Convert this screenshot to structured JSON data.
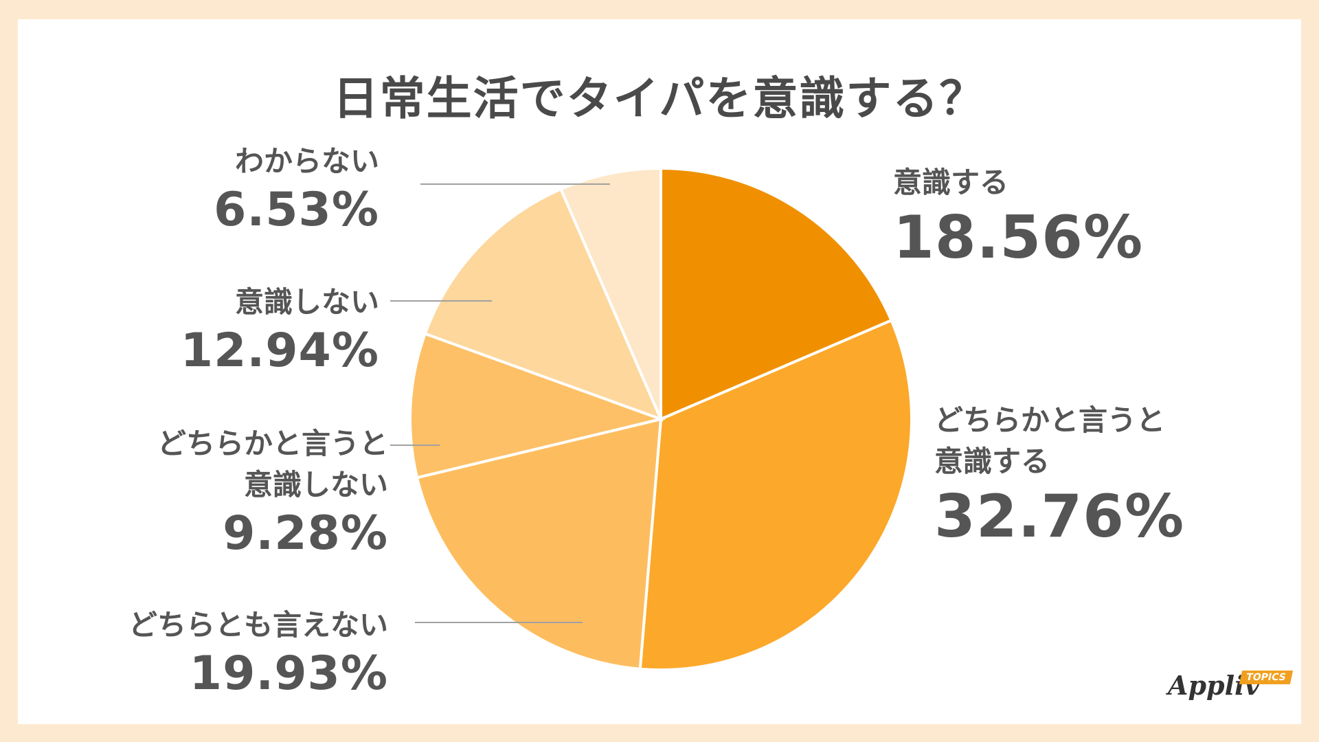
{
  "chart_data": {
    "type": "pie",
    "title": "日常生活でタイパを意識する？",
    "slices": [
      {
        "lines": [
          "意識する"
        ],
        "value": 18.56,
        "label": "18.56%",
        "color": "#f09000"
      },
      {
        "lines": [
          "どちらかと言うと",
          "意識する"
        ],
        "value": 32.76,
        "label": "32.76%",
        "color": "#fca82a"
      },
      {
        "lines": [
          "どちらとも言えない"
        ],
        "value": 19.93,
        "label": "19.93%",
        "color": "#fdbd5f"
      },
      {
        "lines": [
          "どちらかと言うと",
          "意識しない"
        ],
        "value": 9.28,
        "label": "9.28%",
        "color": "#fdc066"
      },
      {
        "lines": [
          "意識しない"
        ],
        "value": 12.94,
        "label": "12.94%",
        "color": "#fdd79c"
      },
      {
        "lines": [
          "わからない"
        ],
        "value": 6.53,
        "label": "6.53%",
        "color": "#fde7c8"
      }
    ]
  },
  "logo": {
    "text": "Appliv",
    "badge": "TOPICS"
  }
}
